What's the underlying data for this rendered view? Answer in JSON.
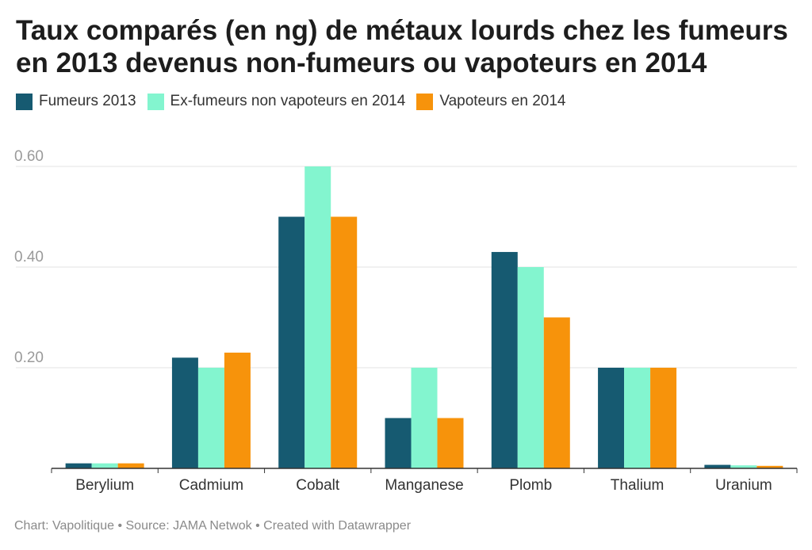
{
  "title": "Taux comparés (en ng) de métaux lourds chez les fumeurs en 2013 devenus non-fumeurs ou vapoteurs en 2014",
  "footer": "Chart: Vapolitique • Source: JAMA Netwok • Created with Datawrapper",
  "chart_data": {
    "type": "bar",
    "title": "Taux comparés (en ng) de métaux lourds chez les fumeurs en 2013 devenus non-fumeurs ou vapoteurs en 2014",
    "xlabel": "",
    "ylabel": "",
    "ylim": [
      0,
      0.6
    ],
    "yticks": [
      "0.20",
      "0.40",
      "0.60"
    ],
    "grid": true,
    "legend_position": "top-left",
    "categories": [
      "Berylium",
      "Cadmium",
      "Cobalt",
      "Manganese",
      "Plomb",
      "Thalium",
      "Uranium"
    ],
    "series": [
      {
        "name": "Fumeurs 2013",
        "color": "#165a71",
        "values": [
          0.01,
          0.22,
          0.5,
          0.1,
          0.43,
          0.2,
          0.007
        ]
      },
      {
        "name": "Ex-fumeurs non vapoteurs en 2014",
        "color": "#83f5cf",
        "values": [
          0.01,
          0.2,
          0.6,
          0.2,
          0.4,
          0.2,
          0.006
        ]
      },
      {
        "name": "Vapoteurs en 2014",
        "color": "#f7930b",
        "values": [
          0.01,
          0.23,
          0.5,
          0.1,
          0.3,
          0.2,
          0.005
        ]
      }
    ]
  }
}
